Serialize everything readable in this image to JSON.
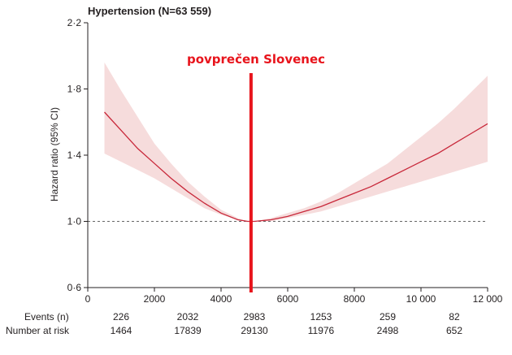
{
  "chart_data": {
    "type": "line",
    "title": "Hypertension (N=63 559)",
    "ylabel": "Hazard ratio (95% CI)",
    "xlabel": "",
    "xlim": [
      0,
      12000
    ],
    "ylim": [
      0.6,
      2.2
    ],
    "x_ticks": [
      0,
      2000,
      4000,
      6000,
      8000,
      10000,
      12000
    ],
    "x_tick_labels": [
      "0",
      "2000",
      "4000",
      "6000",
      "8000",
      "10 000",
      "12 000"
    ],
    "y_ticks": [
      0.6,
      1.0,
      1.4,
      1.8,
      2.2
    ],
    "y_tick_labels": [
      "0·6",
      "1·0",
      "1·4",
      "1·8",
      "2·2"
    ],
    "reference_line": 1.0,
    "series": [
      {
        "x": [
          500,
          1000,
          1500,
          2000,
          2500,
          3000,
          3500,
          4000,
          4500,
          4800,
          5000,
          5500,
          6000,
          6500,
          7000,
          7500,
          8000,
          8500,
          9000,
          9500,
          10000,
          10500,
          11000,
          11500,
          12000
        ],
        "y": [
          1.66,
          1.55,
          1.44,
          1.35,
          1.26,
          1.18,
          1.11,
          1.05,
          1.01,
          1.0,
          1.0,
          1.01,
          1.03,
          1.06,
          1.09,
          1.13,
          1.17,
          1.21,
          1.26,
          1.31,
          1.36,
          1.41,
          1.47,
          1.53,
          1.59
        ],
        "lower": [
          1.41,
          1.36,
          1.31,
          1.26,
          1.2,
          1.14,
          1.08,
          1.04,
          1.01,
          1.0,
          1.0,
          1.0,
          1.02,
          1.04,
          1.06,
          1.09,
          1.12,
          1.15,
          1.18,
          1.21,
          1.24,
          1.27,
          1.3,
          1.33,
          1.36
        ],
        "upper": [
          1.96,
          1.79,
          1.63,
          1.47,
          1.35,
          1.24,
          1.15,
          1.07,
          1.02,
          1.0,
          1.0,
          1.02,
          1.05,
          1.08,
          1.12,
          1.17,
          1.23,
          1.29,
          1.35,
          1.43,
          1.51,
          1.59,
          1.68,
          1.78,
          1.88
        ]
      }
    ],
    "annotation": {
      "label": "povprečen Slovenec",
      "x": 4900
    },
    "risk_table": {
      "row_labels": [
        "Events (n)",
        "Number at risk"
      ],
      "events": [
        "226",
        "2032",
        "2983",
        "1253",
        "259",
        "82"
      ],
      "at_risk": [
        "1464",
        "17839",
        "29130",
        "11976",
        "2498",
        "652"
      ],
      "group_x": [
        1000,
        3000,
        5000,
        7000,
        9000,
        11000
      ]
    },
    "colors": {
      "line": "#c8283a",
      "band": "#f6dcdc",
      "annotation": "#e8141c",
      "reference": "#666666",
      "axis": "#231f20"
    }
  }
}
